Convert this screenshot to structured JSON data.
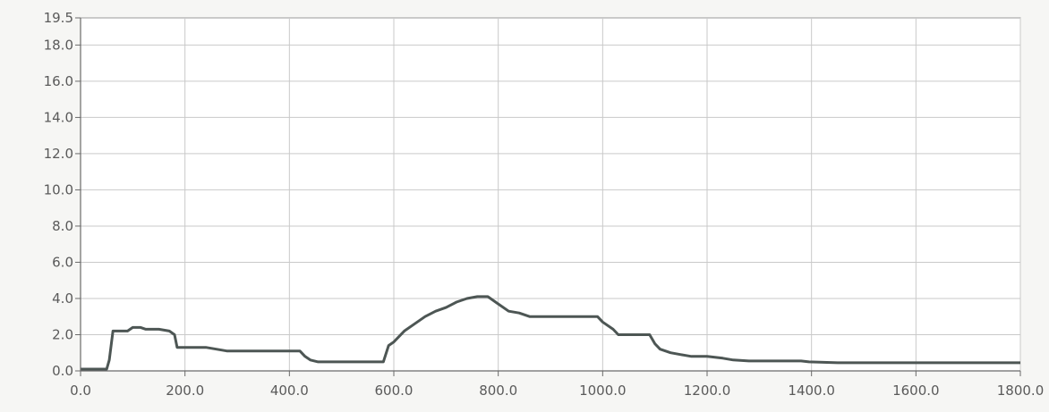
{
  "chart_data": {
    "type": "line",
    "title": "",
    "xlabel": "",
    "ylabel": "",
    "xlim": [
      0,
      1800
    ],
    "ylim": [
      0,
      19.5
    ],
    "grid": true,
    "x_ticks": [
      0,
      200,
      400,
      600,
      800,
      1000,
      1200,
      1400,
      1600,
      1800
    ],
    "x_tick_labels": [
      "0.0",
      "200.0",
      "400.0",
      "600.0",
      "800.0",
      "1000.0",
      "1200.0",
      "1400.0",
      "1600.0",
      "1800.0"
    ],
    "y_ticks": [
      0,
      2,
      4,
      6,
      8,
      10,
      12,
      14,
      16,
      18,
      19.5
    ],
    "y_tick_labels": [
      "0.0",
      "2.0",
      "4.0",
      "6.0",
      "8.0",
      "10.0",
      "12.0",
      "14.0",
      "16.0",
      "18.0",
      "19.5"
    ],
    "series": [
      {
        "color": "#4d5654",
        "x": [
          0,
          50,
          55,
          62,
          90,
          100,
          115,
          125,
          150,
          170,
          180,
          185,
          240,
          260,
          280,
          300,
          320,
          420,
          430,
          440,
          455,
          470,
          580,
          590,
          600,
          620,
          640,
          660,
          680,
          700,
          720,
          740,
          760,
          780,
          800,
          820,
          840,
          860,
          900,
          960,
          990,
          1000,
          1020,
          1030,
          1090,
          1100,
          1110,
          1130,
          1150,
          1170,
          1200,
          1230,
          1250,
          1280,
          1300,
          1380,
          1395,
          1450,
          1500,
          1600,
          1700,
          1800
        ],
        "y": [
          0.1,
          0.1,
          0.6,
          2.2,
          2.2,
          2.4,
          2.4,
          2.3,
          2.3,
          2.2,
          2.0,
          1.3,
          1.3,
          1.2,
          1.1,
          1.1,
          1.1,
          1.1,
          0.8,
          0.6,
          0.5,
          0.5,
          0.5,
          1.4,
          1.6,
          2.2,
          2.6,
          3.0,
          3.3,
          3.5,
          3.8,
          4.0,
          4.1,
          4.1,
          3.7,
          3.3,
          3.2,
          3.0,
          3.0,
          3.0,
          3.0,
          2.7,
          2.3,
          2.0,
          2.0,
          1.5,
          1.2,
          1.0,
          0.9,
          0.8,
          0.8,
          0.7,
          0.6,
          0.55,
          0.55,
          0.55,
          0.5,
          0.45,
          0.45,
          0.45,
          0.45,
          0.45
        ]
      }
    ]
  }
}
